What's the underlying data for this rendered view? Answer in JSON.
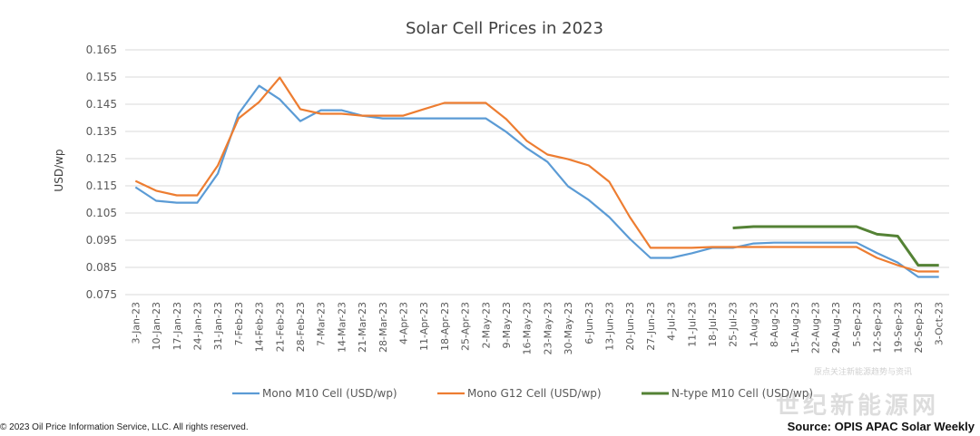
{
  "chart_data": {
    "type": "line",
    "title": "Solar Cell Prices in 2023",
    "ylabel": "USD/wp",
    "xlabel": "",
    "ylim": [
      0.075,
      0.165
    ],
    "yticks": [
      "0.075",
      "0.085",
      "0.095",
      "0.105",
      "0.115",
      "0.125",
      "0.135",
      "0.145",
      "0.155",
      "0.165"
    ],
    "grid": "horizontal",
    "legend_position": "bottom",
    "categories": [
      "3-Jan-23",
      "10-Jan-23",
      "17-Jan-23",
      "24-Jan-23",
      "31-Jan-23",
      "7-Feb-23",
      "14-Feb-23",
      "21-Feb-23",
      "28-Feb-23",
      "7-Mar-23",
      "14-Mar-23",
      "21-Mar-23",
      "28-Mar-23",
      "4-Apr-23",
      "11-Apr-23",
      "18-Apr-23",
      "25-Apr-23",
      "2-May-23",
      "9-May-23",
      "16-May-23",
      "23-May-23",
      "30-May-23",
      "6-Jun-23",
      "13-Jun-23",
      "20-Jun-23",
      "27-Jun-23",
      "4-Jul-23",
      "11-Jul-23",
      "18-Jul-23",
      "25-Jul-23",
      "1-Aug-23",
      "8-Aug-23",
      "15-Aug-23",
      "22-Aug-23",
      "29-Aug-23",
      "5-Sep-23",
      "12-Sep-23",
      "19-Sep-23",
      "26-Sep-23",
      "3-Oct-23"
    ],
    "series": [
      {
        "name": "Mono M10 Cell (USD/wp)",
        "color": "#5b9bd5",
        "values": [
          0.1145,
          0.1095,
          0.1088,
          0.1088,
          0.1195,
          0.1415,
          0.1518,
          0.1468,
          0.1388,
          0.1428,
          0.1428,
          0.1408,
          0.1398,
          0.1398,
          0.1398,
          0.1398,
          0.1398,
          0.1398,
          0.1348,
          0.1288,
          0.1238,
          0.1148,
          0.1098,
          0.1035,
          0.0955,
          0.0885,
          0.0885,
          0.0902,
          0.0922,
          0.0922,
          0.0938,
          0.0941,
          0.0941,
          0.0941,
          0.0941,
          0.0941,
          0.0903,
          0.0868,
          0.0815,
          0.0815
        ]
      },
      {
        "name": "Mono G12 Cell (USD/wp)",
        "color": "#ed7d31",
        "values": [
          0.1168,
          0.1132,
          0.1115,
          0.1115,
          0.1225,
          0.1398,
          0.1458,
          0.1548,
          0.1432,
          0.1415,
          0.1415,
          0.1408,
          0.1408,
          0.1408,
          0.1432,
          0.1455,
          0.1455,
          0.1455,
          0.1395,
          0.1315,
          0.1265,
          0.1248,
          0.1225,
          0.1165,
          0.1035,
          0.0922,
          0.0922,
          0.0922,
          0.0925,
          0.0925,
          0.0925,
          0.0925,
          0.0925,
          0.0925,
          0.0925,
          0.0925,
          0.0885,
          0.0858,
          0.0835,
          0.0835
        ]
      },
      {
        "name": "N-type M10 Cell (USD/wp)",
        "color": "#548235",
        "values": [
          null,
          null,
          null,
          null,
          null,
          null,
          null,
          null,
          null,
          null,
          null,
          null,
          null,
          null,
          null,
          null,
          null,
          null,
          null,
          null,
          null,
          null,
          null,
          null,
          null,
          null,
          null,
          null,
          null,
          0.0995,
          0.1,
          0.1,
          0.1,
          0.1,
          0.1,
          0.1,
          0.0972,
          0.0965,
          0.0858,
          0.0858
        ]
      }
    ]
  },
  "footer": {
    "copyright": "© 2023 Oil Price Information Service, LLC. All rights reserved.",
    "source": "Source: OPIS APAC Solar Weekly"
  },
  "watermark": {
    "main": "世纪新能源网",
    "small": "原点关注新能源趋势与资讯"
  }
}
